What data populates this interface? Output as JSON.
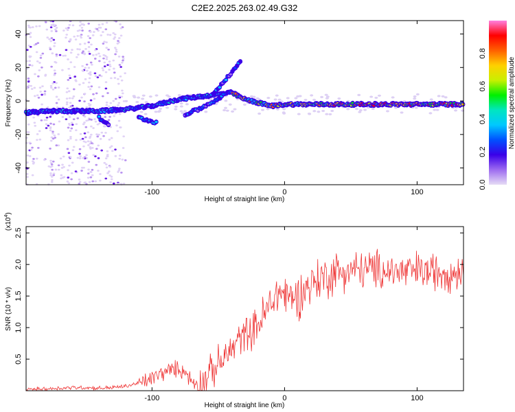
{
  "title": "C2E2.2025.263.02.49.G32",
  "chart_data": [
    {
      "type": "heatmap",
      "xlabel": "Height of straight line (km)",
      "ylabel": "Frequency (Hz)",
      "xlim": [
        -195,
        135
      ],
      "ylim": [
        -50,
        48
      ],
      "xticks": [
        -100,
        0,
        100
      ],
      "xtick_labels": [
        "-100",
        "0",
        "100"
      ],
      "yticks": [
        -40,
        -20,
        0,
        20,
        40
      ],
      "ytick_labels": [
        "-40",
        "-20",
        "0",
        "20",
        "40"
      ],
      "colorbar": {
        "label": "Normalized spectral amplitude",
        "range": [
          0,
          1
        ],
        "ticks": [
          0.0,
          0.2,
          0.4,
          0.6,
          0.8
        ],
        "tick_labels": [
          "0.0",
          "0.2",
          "0.4",
          "0.6",
          "0.8"
        ],
        "colors": [
          "#e6dcf5",
          "#9d6bf0",
          "#3a00e8",
          "#0050ff",
          "#00c8ff",
          "#00e6c0",
          "#00f000",
          "#c8f000",
          "#ffd000",
          "#ff6000",
          "#ff0000",
          "#ff80e0"
        ]
      },
      "ridges": [
        {
          "name": "main-track",
          "points": [
            [
              -195,
              -7
            ],
            [
              -175,
              -6
            ],
            [
              -160,
              -6
            ],
            [
              -140,
              -6
            ],
            [
              -120,
              -5
            ],
            [
              -100,
              -3
            ],
            [
              -80,
              1
            ],
            [
              -60,
              3
            ],
            [
              -40,
              5
            ],
            [
              -30,
              1
            ],
            [
              -20,
              -1
            ],
            [
              -10,
              -3
            ],
            [
              0,
              -2
            ],
            [
              20,
              -2
            ],
            [
              50,
              -2
            ],
            [
              80,
              -2
            ],
            [
              110,
              -2
            ],
            [
              135,
              -2
            ]
          ]
        },
        {
          "name": "upper-track",
          "points": [
            [
              -55,
              4
            ],
            [
              -50,
              8
            ],
            [
              -45,
              12
            ],
            [
              -40,
              17
            ],
            [
              -33,
              24
            ]
          ]
        },
        {
          "name": "lower-track",
          "points": [
            [
              -75,
              -8
            ],
            [
              -65,
              -5
            ],
            [
              -55,
              -1
            ],
            [
              -45,
              4
            ]
          ]
        },
        {
          "name": "dip",
          "points": [
            [
              -140,
              -10
            ],
            [
              -132,
              -15
            ]
          ]
        },
        {
          "name": "side-cluster",
          "points": [
            [
              -110,
              -10
            ],
            [
              -96,
              -13
            ]
          ]
        }
      ]
    },
    {
      "type": "line",
      "xlabel": "Height of straight line (km)",
      "ylabel": "SNR (10 * v/v)",
      "multiplier_label": "(x10",
      "multiplier_exp": "4",
      "xlim": [
        -195,
        135
      ],
      "ylim": [
        0,
        2.6
      ],
      "xticks": [
        -100,
        0,
        100
      ],
      "xtick_labels": [
        "-100",
        "0",
        "100"
      ],
      "yticks": [
        0.5,
        1.0,
        1.5,
        2.0,
        2.5
      ],
      "ytick_labels": [
        "0.5",
        "1.0",
        "1.5",
        "2.0",
        "2.5"
      ],
      "color": "#ee3333",
      "series": [
        {
          "name": "SNR",
          "x": [
            -195,
            -180,
            -170,
            -160,
            -150,
            -140,
            -130,
            -120,
            -110,
            -105,
            -100,
            -95,
            -90,
            -85,
            -80,
            -75,
            -70,
            -65,
            -60,
            -55,
            -50,
            -45,
            -40,
            -35,
            -30,
            -25,
            -20,
            -15,
            -10,
            -5,
            0,
            5,
            10,
            15,
            20,
            25,
            30,
            35,
            40,
            45,
            50,
            60,
            70,
            80,
            90,
            100,
            110,
            120,
            130,
            135
          ],
          "y": [
            0.02,
            0.03,
            0.04,
            0.05,
            0.05,
            0.04,
            0.05,
            0.07,
            0.12,
            0.15,
            0.2,
            0.25,
            0.3,
            0.33,
            0.35,
            0.3,
            0.15,
            0.1,
            0.18,
            0.3,
            0.42,
            0.52,
            0.65,
            0.8,
            0.9,
            0.95,
            1.05,
            1.2,
            1.4,
            1.55,
            1.55,
            1.45,
            1.5,
            1.6,
            1.7,
            1.75,
            1.8,
            1.85,
            1.88,
            1.9,
            1.9,
            1.92,
            1.92,
            1.9,
            1.88,
            1.9,
            1.88,
            1.9,
            1.88,
            1.9
          ]
        }
      ]
    }
  ]
}
